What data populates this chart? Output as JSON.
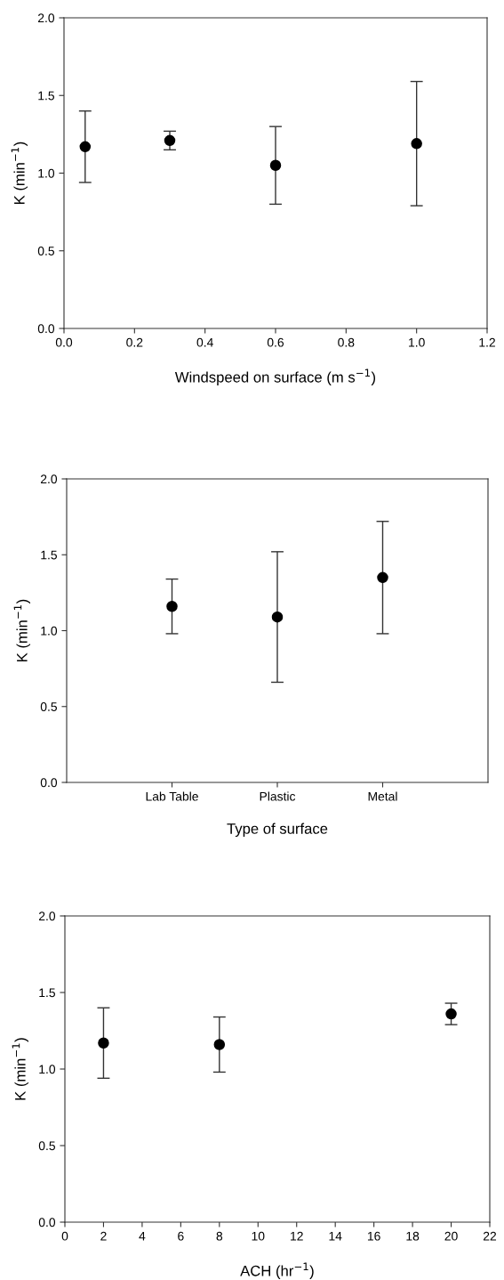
{
  "chart_data": [
    {
      "type": "scatter",
      "xlabel": "Windspeed on surface (m s$^{−1}$)",
      "ylabel": "K (min$^{−1}$)",
      "x": [
        0.06,
        0.3,
        0.6,
        1.0
      ],
      "series": [
        {
          "color": "#000000",
          "values": [
            1.17,
            1.21,
            1.05,
            1.19
          ],
          "errors": [
            [
              0.94,
              1.4
            ],
            [
              1.15,
              1.27
            ],
            [
              0.8,
              1.3
            ],
            [
              0.79,
              1.59
            ]
          ]
        }
      ],
      "xlim": [
        0,
        1.2
      ],
      "xticks": [
        {
          "value": 0,
          "label": "0.0"
        },
        {
          "value": 0.2,
          "label": "0.2"
        },
        {
          "value": 0.4,
          "label": "0.4"
        },
        {
          "value": 0.6,
          "label": "0.6"
        },
        {
          "value": 0.8,
          "label": "0.8"
        },
        {
          "value": 1.0,
          "label": "1.0"
        },
        {
          "value": 1.2,
          "label": "1.2"
        }
      ],
      "ylim": [
        0,
        2
      ],
      "yticks": [
        {
          "value": 0,
          "label": "0.0"
        },
        {
          "value": 0.5,
          "label": "0.5"
        },
        {
          "value": 1,
          "label": "1.0"
        },
        {
          "value": 1.5,
          "label": "1.5"
        },
        {
          "value": 2,
          "label": "2.0"
        }
      ],
      "marker": "circle",
      "grid": false,
      "legend": false
    },
    {
      "type": "scatter",
      "xlabel": "Type of surface",
      "ylabel": "K (min$^{−1}$)",
      "categories": [
        "Lab Table",
        "Plastic",
        "Metal"
      ],
      "series": [
        {
          "color": "#000000",
          "values": [
            1.16,
            1.09,
            1.35
          ],
          "errors": [
            [
              0.98,
              1.34
            ],
            [
              0.66,
              1.52
            ],
            [
              0.98,
              1.72
            ]
          ]
        }
      ],
      "ylim": [
        0,
        2
      ],
      "yticks": [
        {
          "value": 0,
          "label": "0.0"
        },
        {
          "value": 0.5,
          "label": "0.5"
        },
        {
          "value": 1,
          "label": "1.0"
        },
        {
          "value": 1.5,
          "label": "1.5"
        },
        {
          "value": 2,
          "label": "2.0"
        }
      ],
      "marker": "circle",
      "grid": false,
      "legend": false
    },
    {
      "type": "scatter",
      "xlabel": "ACH (hr$^{−1}$)",
      "ylabel": "K (min$^{−1}$)",
      "x": [
        2,
        8,
        20
      ],
      "series": [
        {
          "color": "#000000",
          "values": [
            1.17,
            1.16,
            1.36
          ],
          "errors": [
            [
              0.94,
              1.4
            ],
            [
              0.98,
              1.34
            ],
            [
              1.29,
              1.43
            ]
          ]
        }
      ],
      "xlim": [
        0,
        22
      ],
      "xticks": [
        0,
        2,
        4,
        6,
        8,
        10,
        12,
        14,
        16,
        18,
        20,
        22
      ],
      "ylim": [
        0,
        2
      ],
      "yticks": [
        {
          "value": 0,
          "label": "0.0"
        },
        {
          "value": 0.5,
          "label": "0.5"
        },
        {
          "value": 1,
          "label": "1.0"
        },
        {
          "value": 1.5,
          "label": "1.5"
        },
        {
          "value": 2,
          "label": "2.0"
        }
      ],
      "marker": "circle",
      "grid": false,
      "legend": false
    }
  ]
}
